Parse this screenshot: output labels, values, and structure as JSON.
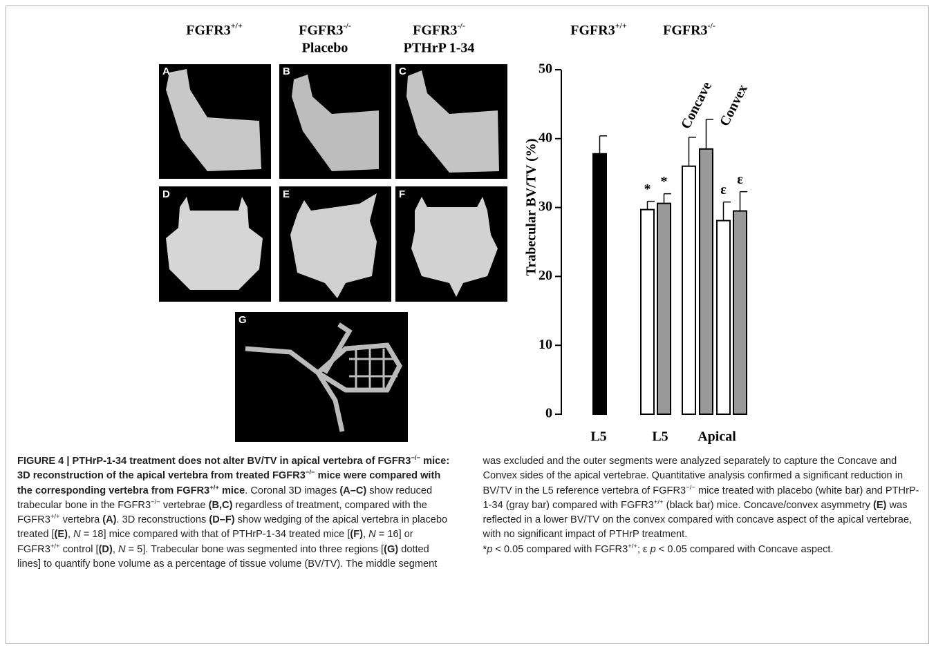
{
  "column_headers": [
    {
      "base": "FGFR3",
      "sup": "+/+"
    },
    {
      "base": "FGFR3",
      "sup": "-/-",
      "line2": "Placebo"
    },
    {
      "base": "FGFR3",
      "sup": "-/-",
      "line2": "PTHrP 1-34"
    }
  ],
  "panel_letters": [
    "A",
    "B",
    "C",
    "D",
    "E",
    "F",
    "G"
  ],
  "chart_data": {
    "type": "bar",
    "group_headers": [
      {
        "base": "FGFR3",
        "sup": "+/+"
      },
      {
        "base": "FGFR3",
        "sup": "-/-"
      }
    ],
    "x_group_labels": [
      "L5",
      "L5",
      "Apical"
    ],
    "subgroup_labels": [
      "Concave",
      "Convex"
    ],
    "ylabel": "Trabecular BV/TV (%)",
    "values": [
      37.8,
      29.7,
      30.6,
      36.0,
      38.5,
      28.1,
      29.5
    ],
    "errors": [
      2.6,
      1.2,
      1.4,
      4.2,
      4.3,
      2.7,
      2.8
    ],
    "colors": [
      "#000000",
      "#ffffff",
      "#999999",
      "#ffffff",
      "#999999",
      "#ffffff",
      "#999999"
    ],
    "bar_annotations": [
      null,
      "*",
      "*",
      null,
      null,
      "ε",
      "ε"
    ],
    "ylim": [
      0,
      50
    ],
    "yticks": [
      0,
      10,
      20,
      30,
      40,
      50
    ]
  },
  "caption": {
    "paragraphs": [
      [
        {
          "text": "FIGURE 4 | PTHrP-1-34 treatment does not alter BV/TV in apical vertebra of FGFR3",
          "style": "bold"
        },
        {
          "text": "−/−",
          "style": "bold-sup"
        },
        {
          "text": " mice: 3D reconstruction of the apical vertebra from treated FGFR3",
          "style": "bold"
        },
        {
          "text": "−/−",
          "style": "bold-sup"
        },
        {
          "text": " mice were compared with the corresponding vertebra from FGFR3",
          "style": "bold"
        },
        {
          "text": "+/+",
          "style": "bold-sup"
        },
        {
          "text": " mice",
          "style": "bold"
        },
        {
          "text": ". Coronal 3D images "
        },
        {
          "text": "(A–C)",
          "style": "bold"
        },
        {
          "text": " show reduced trabecular bone in the FGFR3"
        },
        {
          "text": "−/−",
          "style": "sup"
        },
        {
          "text": " vertebrae "
        },
        {
          "text": "(B,C)",
          "style": "bold"
        },
        {
          "text": " regardless of treatment, compared with the FGFR3"
        },
        {
          "text": "+/+",
          "style": "sup"
        },
        {
          "text": " vertebra "
        },
        {
          "text": "(A)",
          "style": "bold"
        },
        {
          "text": ". 3D reconstructions "
        },
        {
          "text": "(D–F)",
          "style": "bold"
        },
        {
          "text": " show wedging of the apical vertebra in placebo treated ["
        },
        {
          "text": "(E)",
          "style": "bold"
        },
        {
          "text": ", "
        },
        {
          "text": "N",
          "style": "italic"
        },
        {
          "text": " = 18] mice compared with that of PTHrP-1-34 treated mice ["
        },
        {
          "text": "(F)",
          "style": "bold"
        },
        {
          "text": ", "
        },
        {
          "text": "N",
          "style": "italic"
        },
        {
          "text": " = 16] or FGFR3"
        },
        {
          "text": "+/+",
          "style": "sup"
        },
        {
          "text": " control ["
        },
        {
          "text": "(D)",
          "style": "bold"
        },
        {
          "text": ", "
        },
        {
          "text": "N",
          "style": "italic"
        },
        {
          "text": " = 5]. Trabecular bone was segmented into three regions ["
        },
        {
          "text": "(G)",
          "style": "bold"
        },
        {
          "text": " dotted lines] to quantify bone volume as a percentage of tissue volume (BV/TV). The middle segment was excluded and the outer segments were analyzed separately to capture the Concave and Convex sides of the apical vertebrae. Quantitative analysis confirmed a significant reduction in BV/TV in the L5 reference vertebra of FGFR3"
        },
        {
          "text": "−/−",
          "style": "sup"
        },
        {
          "text": " mice treated with placebo (white bar) and PTHrP-1-34 (gray bar) compared with FGFR3"
        },
        {
          "text": "+/+",
          "style": "sup"
        },
        {
          "text": " (black bar) mice. Concave/convex asymmetry "
        },
        {
          "text": "(E)",
          "style": "bold"
        },
        {
          "text": " was reflected in a lower BV/TV on the convex compared with concave aspect of the apical vertebrae, with no significant impact of PTHrP treatment."
        }
      ],
      [
        {
          "text": "*"
        },
        {
          "text": "p",
          "style": "italic"
        },
        {
          "text": " < 0.05 compared with FGFR3"
        },
        {
          "text": "+/+",
          "style": "sup"
        },
        {
          "text": "; ε "
        },
        {
          "text": "p",
          "style": "italic"
        },
        {
          "text": " < 0.05 compared with Concave aspect."
        }
      ]
    ]
  }
}
